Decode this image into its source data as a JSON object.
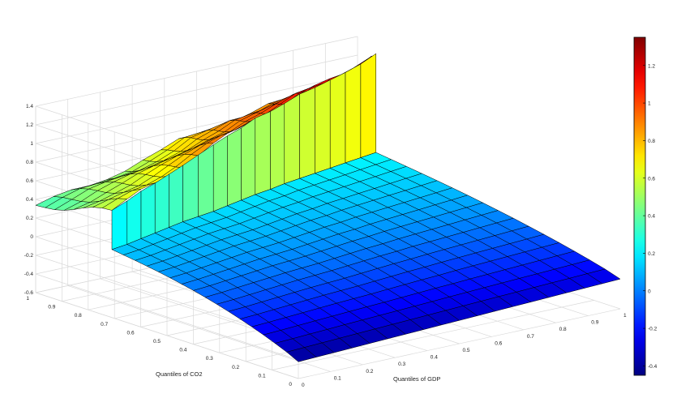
{
  "chart_data": {
    "type": "surface3d",
    "title": "",
    "xlabel": "Quantiles of GDP",
    "ylabel": "Quantiles of CO2",
    "zlabel": "",
    "xlim": [
      0,
      1
    ],
    "ylim": [
      0,
      1
    ],
    "zlim": [
      -0.6,
      1.4
    ],
    "x_ticks": [
      "0",
      "0.1",
      "0.2",
      "0.3",
      "0.4",
      "0.5",
      "0.6",
      "0.7",
      "0.8",
      "0.9",
      "1"
    ],
    "y_ticks": [
      "0",
      "0.1",
      "0.2",
      "0.3",
      "0.4",
      "0.5",
      "0.6",
      "0.7",
      "0.8",
      "0.9",
      "1"
    ],
    "z_ticks": [
      "-0.6",
      "-0.4",
      "-0.2",
      "0",
      "0.2",
      "0.4",
      "0.6",
      "0.8",
      "1",
      "1.2",
      "1.4"
    ],
    "grid": true,
    "colormap": "jet",
    "colorbar": {
      "range": [
        -0.45,
        1.35
      ],
      "ticks": [
        "-0.4",
        "-0.2",
        "0",
        "0.2",
        "0.4",
        "0.6",
        "0.8",
        "1",
        "1.2"
      ]
    },
    "grid_points_per_axis": 19,
    "lower_sheet": {
      "description_of_values": "z at (x = GDP quantile, y = CO2 quantile) for y below the step",
      "z_at_x0_y0": -0.42,
      "z_at_x1_y0": -0.28,
      "z_at_x0_step": 0.13,
      "z_at_x1_step": 0.22
    },
    "step_edge": {
      "y_quantile": [
        0.71,
        0.72,
        0.735,
        0.75,
        0.765,
        0.78,
        0.79,
        0.8,
        0.815,
        0.83,
        0.845,
        0.855,
        0.87,
        0.88,
        0.89,
        0.9,
        0.91,
        0.92,
        0.93
      ],
      "upper_z": [
        0.55,
        0.6,
        0.65,
        0.68,
        0.72,
        0.76,
        0.82,
        0.88,
        0.92,
        0.95,
        1.0,
        1.02,
        1.05,
        1.1,
        1.12,
        1.15,
        1.18,
        1.22,
        1.28
      ]
    },
    "upper_plateau_z_at_x0": 0.32
  }
}
